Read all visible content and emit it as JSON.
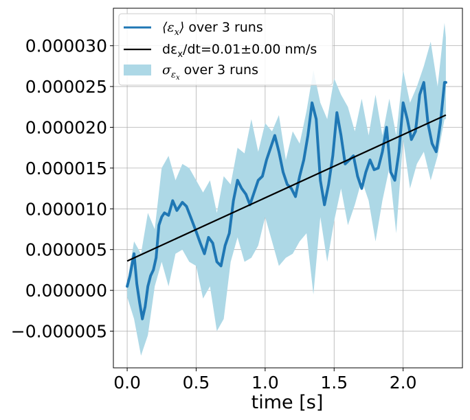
{
  "chart_data": {
    "type": "line",
    "title": "",
    "xlabel": "time [s]",
    "ylabel": "",
    "xlim": [
      -0.1,
      2.43
    ],
    "ylim": [
      -9.5e-06,
      3.46e-05
    ],
    "grid": true,
    "legend_position": "top-left",
    "x_ticks": [
      0.0,
      0.5,
      1.0,
      1.5,
      2.0
    ],
    "x_tick_labels": [
      "0.0",
      "0.5",
      "1.0",
      "1.5",
      "2.0"
    ],
    "y_ticks": [
      -5e-06,
      0.0,
      5e-06,
      1e-05,
      1.5e-05,
      2e-05,
      2.5e-05,
      3e-05
    ],
    "y_tick_labels": [
      "−0.000005",
      "0.000000",
      "0.000005",
      "0.000010",
      "0.000015",
      "0.000020",
      "0.000025",
      "0.000030"
    ],
    "series": [
      {
        "name": "⟨εx⟩ over 3 runs",
        "legend_math": "⟨ε",
        "legend_sub": "x",
        "legend_math_close": "⟩",
        "legend_rest": " over 3 runs",
        "kind": "mean",
        "color": "#1f77b4",
        "x": [
          0.0,
          0.02,
          0.05,
          0.07,
          0.09,
          0.11,
          0.13,
          0.15,
          0.17,
          0.19,
          0.21,
          0.23,
          0.25,
          0.27,
          0.3,
          0.33,
          0.36,
          0.4,
          0.43,
          0.46,
          0.5,
          0.53,
          0.56,
          0.59,
          0.62,
          0.65,
          0.68,
          0.71,
          0.74,
          0.77,
          0.8,
          0.83,
          0.86,
          0.89,
          0.92,
          0.95,
          0.98,
          1.01,
          1.04,
          1.07,
          1.1,
          1.13,
          1.16,
          1.19,
          1.22,
          1.25,
          1.28,
          1.31,
          1.34,
          1.37,
          1.4,
          1.43,
          1.46,
          1.49,
          1.52,
          1.55,
          1.58,
          1.61,
          1.64,
          1.67,
          1.7,
          1.73,
          1.76,
          1.79,
          1.82,
          1.85,
          1.88,
          1.91,
          1.94,
          1.97,
          2.0,
          2.03,
          2.06,
          2.09,
          2.12,
          2.15,
          2.18,
          2.21,
          2.24,
          2.27,
          2.3,
          2.31
        ],
        "y": [
          5e-07,
          1.8e-06,
          4.5e-06,
          8e-07,
          -1.5e-06,
          -3.5e-06,
          -2e-06,
          5e-07,
          1.8e-06,
          2.5e-06,
          4e-06,
          8e-06,
          9e-06,
          9.5e-06,
          9.2e-06,
          1.1e-05,
          9.8e-06,
          1.08e-05,
          1.03e-05,
          9e-06,
          7.2e-06,
          5.8e-06,
          4.5e-06,
          6.5e-06,
          5.8e-06,
          3.5e-06,
          3e-06,
          5.5e-06,
          7e-06,
          1.1e-05,
          1.35e-05,
          1.25e-05,
          1.18e-05,
          1.05e-05,
          1.2e-05,
          1.35e-05,
          1.4e-05,
          1.6e-05,
          1.75e-05,
          1.9e-05,
          1.7e-05,
          1.45e-05,
          1.3e-05,
          1.25e-05,
          1.15e-05,
          1.4e-05,
          1.6e-05,
          1.9e-05,
          2.3e-05,
          2.1e-05,
          1.35e-05,
          1.05e-05,
          1.3e-05,
          1.65e-05,
          2.18e-05,
          1.9e-05,
          1.55e-05,
          1.6e-05,
          1.65e-05,
          1.4e-05,
          1.25e-05,
          1.45e-05,
          1.6e-05,
          1.48e-05,
          1.5e-05,
          1.7e-05,
          2e-05,
          1.45e-05,
          1.35e-05,
          1.7e-05,
          2.3e-05,
          2.1e-05,
          1.85e-05,
          1.95e-05,
          2.4e-05,
          2.55e-05,
          2.05e-05,
          1.8e-05,
          1.7e-05,
          2.05e-05,
          2.55e-05,
          2.55e-05
        ]
      },
      {
        "name": "dεx/dt=0.01±0.00 nm/s",
        "legend_pre": "dε",
        "legend_sub": "x",
        "legend_rest": "/dt=0.01±0.00 nm/s",
        "kind": "fit",
        "color": "#000000",
        "x": [
          0.0,
          2.31
        ],
        "y": [
          3.6e-06,
          2.15e-05
        ]
      },
      {
        "name": "σεx over 3 runs",
        "legend_math": "σ",
        "legend_sub": "ε",
        "legend_subsub": "x",
        "legend_rest": " over 3 runs",
        "kind": "band",
        "color": "#add8e6",
        "x": [
          0.0,
          0.05,
          0.1,
          0.15,
          0.2,
          0.25,
          0.3,
          0.35,
          0.4,
          0.45,
          0.5,
          0.55,
          0.6,
          0.65,
          0.7,
          0.75,
          0.8,
          0.85,
          0.9,
          0.95,
          1.0,
          1.05,
          1.1,
          1.15,
          1.2,
          1.25,
          1.3,
          1.35,
          1.4,
          1.45,
          1.5,
          1.55,
          1.6,
          1.65,
          1.7,
          1.75,
          1.8,
          1.85,
          1.9,
          1.95,
          2.0,
          2.05,
          2.1,
          2.15,
          2.2,
          2.25,
          2.3,
          2.31
        ],
        "upper": [
          1e-06,
          6e-06,
          4.5e-06,
          9.5e-06,
          7.5e-06,
          1.5e-05,
          1.65e-05,
          1.35e-05,
          1.55e-05,
          1.5e-05,
          1.35e-05,
          1.2e-05,
          1.35e-05,
          9.5e-06,
          1.4e-05,
          1.3e-05,
          1.75e-05,
          1.68e-05,
          2.1e-05,
          1.7e-05,
          2.05e-05,
          1.95e-05,
          2.15e-05,
          1.6e-05,
          1.95e-05,
          1.8e-05,
          2.2e-05,
          2.7e-05,
          2.3e-05,
          2.1e-05,
          2.6e-05,
          2.4e-05,
          2.25e-05,
          1.95e-05,
          2.35e-05,
          1.9e-05,
          2.4e-05,
          1.9e-05,
          2.35e-05,
          1.9e-05,
          2.7e-05,
          2.3e-05,
          2.5e-05,
          2.75e-05,
          3.05e-05,
          2.5e-05,
          3.28e-05,
          3.1e-05
        ],
        "lower": [
          -8e-07,
          -3.5e-06,
          -8e-06,
          -5.5e-06,
          5e-07,
          3.5e-06,
          5e-07,
          4.5e-06,
          5e-06,
          3.5e-06,
          3e-06,
          -1e-06,
          5e-07,
          -5e-06,
          -3.5e-06,
          3.5e-06,
          6.5e-06,
          3.5e-06,
          4e-06,
          5.5e-06,
          9e-06,
          6e-06,
          3e-06,
          4e-06,
          4.5e-06,
          6e-06,
          7e-06,
          -5e-07,
          9e-06,
          3.5e-06,
          8.5e-06,
          1.25e-05,
          8e-06,
          1.05e-05,
          1.35e-05,
          1.1e-05,
          6e-06,
          1.1e-05,
          1.5e-05,
          7e-06,
          1.85e-05,
          1.25e-05,
          1.55e-05,
          1.7e-05,
          1.35e-05,
          1.65e-05,
          2.1e-05,
          2.1e-05
        ]
      }
    ]
  }
}
